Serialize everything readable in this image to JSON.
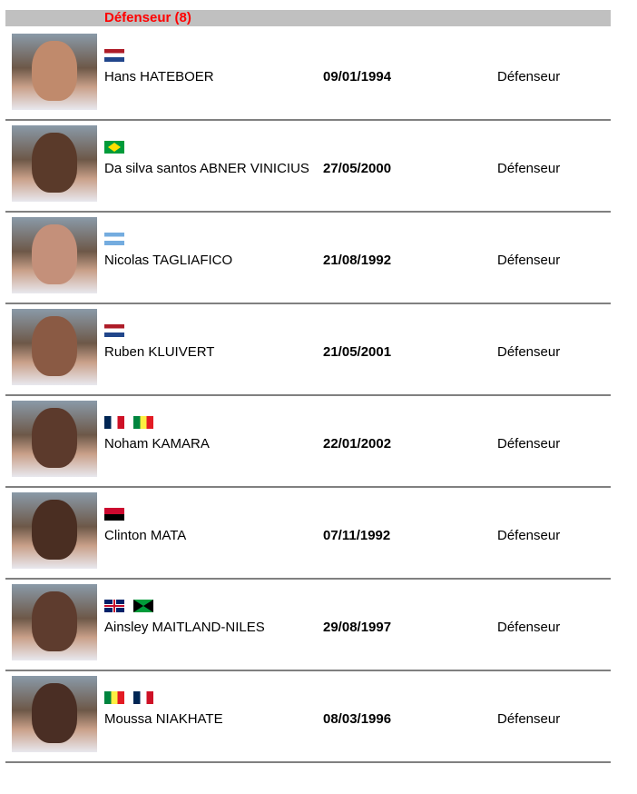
{
  "section": {
    "title": "Défenseur (8)",
    "header_color": "#c0c0c0",
    "title_color": "#ff0000"
  },
  "players": [
    {
      "name": "Hans HATEBOER",
      "birth_date": "09/01/1994",
      "position": "Défenseur",
      "flags": [
        "NL"
      ]
    },
    {
      "name": "Da silva santos ABNER VINICIUS",
      "birth_date": "27/05/2000",
      "position": "Défenseur",
      "flags": [
        "BR"
      ]
    },
    {
      "name": "Nicolas TAGLIAFICO",
      "birth_date": "21/08/1992",
      "position": "Défenseur",
      "flags": [
        "AR"
      ]
    },
    {
      "name": "Ruben KLUIVERT",
      "birth_date": "21/05/2001",
      "position": "Défenseur",
      "flags": [
        "NL"
      ]
    },
    {
      "name": "Noham KAMARA",
      "birth_date": "22/01/2002",
      "position": "Défenseur",
      "flags": [
        "FR",
        "SN"
      ]
    },
    {
      "name": "Clinton MATA",
      "birth_date": "07/11/1992",
      "position": "Défenseur",
      "flags": [
        "AO"
      ]
    },
    {
      "name": "Ainsley MAITLAND-NILES",
      "birth_date": "29/08/1997",
      "position": "Défenseur",
      "flags": [
        "GB",
        "JM"
      ]
    },
    {
      "name": "Moussa NIAKHATE",
      "birth_date": "08/03/1996",
      "position": "Défenseur",
      "flags": [
        "SN",
        "FR"
      ]
    }
  ]
}
